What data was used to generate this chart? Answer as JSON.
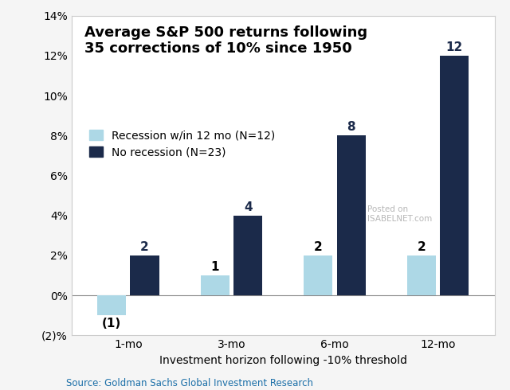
{
  "title_line1": "Average S&P 500 returns following",
  "title_line2": "35 corrections of 10% since 1950",
  "categories": [
    "1-mo",
    "3-mo",
    "6-mo",
    "12-mo"
  ],
  "recession_values": [
    -1,
    1,
    2,
    2
  ],
  "no_recession_values": [
    2,
    4,
    8,
    12
  ],
  "recession_labels": [
    "(1)",
    "1",
    "2",
    "2"
  ],
  "no_recession_labels": [
    "2",
    "4",
    "8",
    "12"
  ],
  "recession_color": "#ADD8E6",
  "no_recession_color": "#1B2A4A",
  "xlabel": "Investment horizon following -10% threshold",
  "ylim_min": -2,
  "ylim_max": 14,
  "yticks": [
    -2,
    0,
    2,
    4,
    6,
    8,
    10,
    12,
    14
  ],
  "ytick_labels": [
    "(2)%",
    "0%",
    "2%",
    "4%",
    "6%",
    "8%",
    "10%",
    "12%",
    "14%"
  ],
  "legend_recession": "Recession w/in 12 mo (N=12)",
  "legend_no_recession": "No recession (N=23)",
  "source_text": "Source: Goldman Sachs Global Investment Research",
  "bar_width": 0.28,
  "label_fontsize": 11,
  "title_fontsize": 13,
  "source_color": "#1B6FA8",
  "watermark_text": "Posted on\nISABELNET.com",
  "bg_color": "#F5F5F5",
  "plot_bg_color": "#FFFFFF",
  "border_color": "#CCCCCC"
}
